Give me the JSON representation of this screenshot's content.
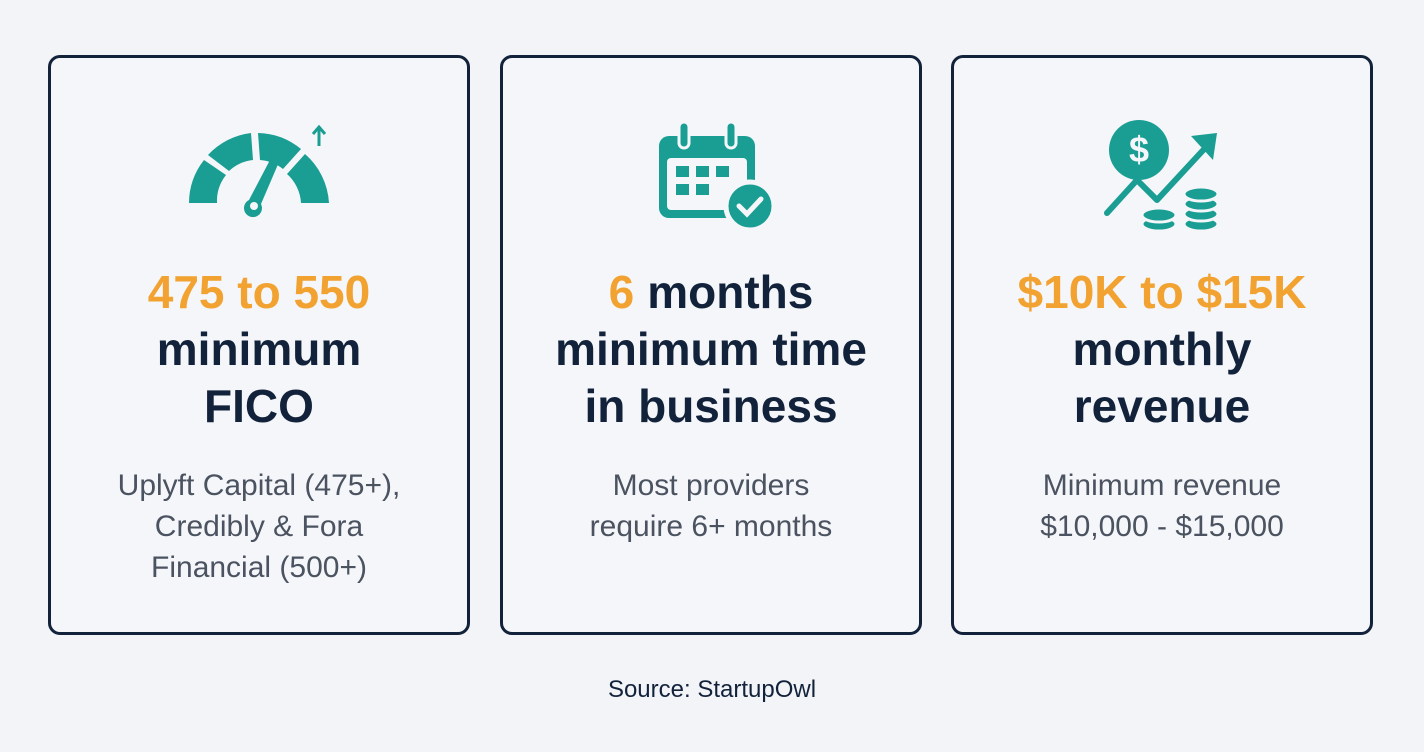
{
  "cards": [
    {
      "headline_lines": [
        [
          "475 to 550"
        ],
        [
          "minimum"
        ],
        [
          "FICO"
        ]
      ],
      "description_lines": [
        "Uplyft Capital (475+),",
        "Credibly & Fora",
        "Financial (500+)"
      ]
    },
    {
      "headline_lines": [
        [
          "6",
          "months"
        ],
        [
          "minimum time"
        ],
        [
          "in business"
        ]
      ],
      "description_lines": [
        "Most providers",
        "require 6+ months"
      ]
    },
    {
      "headline_lines": [
        [
          "$10K to $15K"
        ],
        [
          "monthly"
        ],
        [
          "revenue"
        ]
      ],
      "description_lines": [
        "Minimum revenue",
        "$10,000 - $15,000"
      ]
    }
  ],
  "source": "Source: StartupOwl"
}
